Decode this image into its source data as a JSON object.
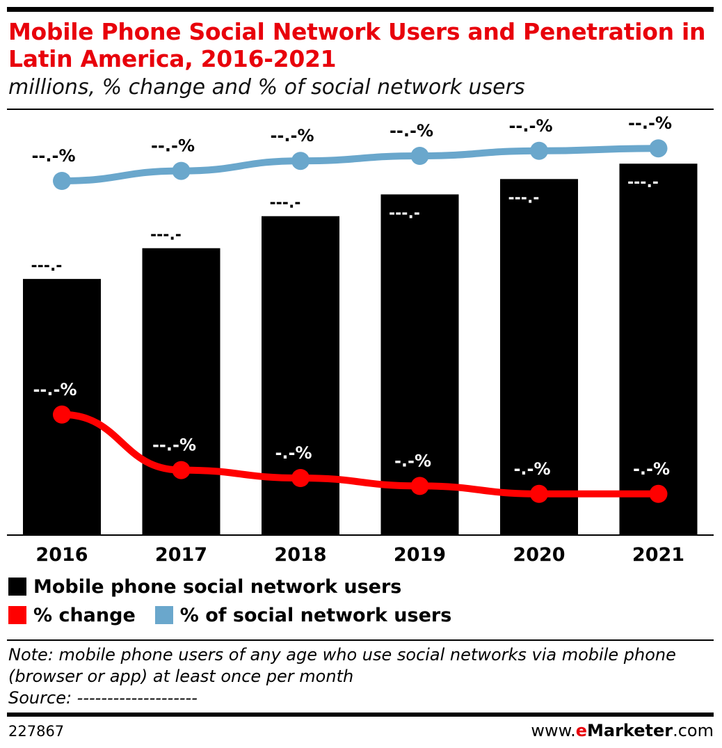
{
  "header": {
    "title": "Mobile Phone Social Network Users and Penetration in Latin America, 2016-2021",
    "subtitle": "millions, % change and % of social network users"
  },
  "chart_data": {
    "type": "bar",
    "categories": [
      "2016",
      "2017",
      "2018",
      "2019",
      "2020",
      "2021"
    ],
    "series": [
      {
        "name": "Mobile phone social network users",
        "type": "bar",
        "color": "#000000",
        "values": [
          200,
          224,
          249,
          266,
          278,
          290
        ],
        "labels": [
          "---.-",
          "---.-",
          "---.-",
          "---.-",
          "---.-",
          "---.-"
        ]
      },
      {
        "name": "% change",
        "type": "line",
        "color": "#ff0000",
        "values": [
          13,
          6,
          5,
          4,
          3,
          3
        ],
        "labels": [
          "--.-%",
          "--.-%",
          "-.-%",
          "-.-%",
          "-.-%",
          "-.-%"
        ]
      },
      {
        "name": "% of social network users",
        "type": "line",
        "color": "#6aa7cc",
        "values": [
          89,
          91,
          93,
          94,
          95,
          95.5
        ],
        "labels": [
          "--.-%",
          "--.-%",
          "--.-%",
          "--.-%",
          "--.-%",
          "--.-%"
        ]
      }
    ],
    "legend_position": "bottom",
    "grid": false
  },
  "legend": {
    "items": [
      {
        "label": "Mobile phone social network users",
        "color": "#000000"
      },
      {
        "label": "% change",
        "color": "#ff0000"
      },
      {
        "label": "% of social network users",
        "color": "#6aa7cc"
      }
    ]
  },
  "footer": {
    "note": "Note: mobile phone users of any age who use social networks via mobile phone (browser or app) at least once per month",
    "source": "Source: --------------------",
    "chart_id": "227867",
    "brand_prefix": "www.",
    "brand_e": "e",
    "brand_name": "Marketer",
    "brand_suffix": ".com"
  }
}
